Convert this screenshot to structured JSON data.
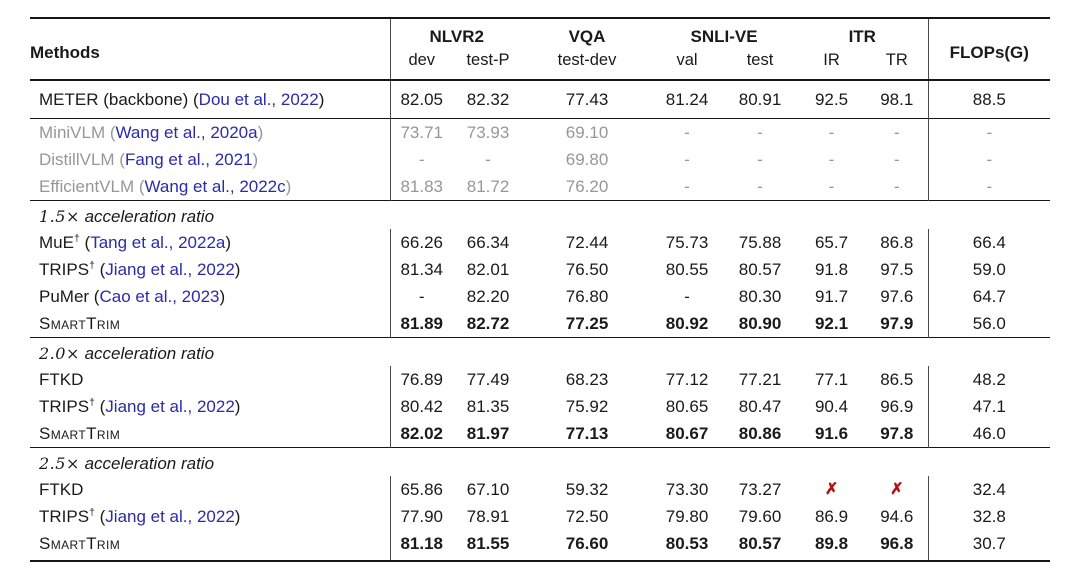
{
  "colors": {
    "citation_blue": "#2b2baa",
    "muted_gray": "#979797",
    "cross_red": "#b51212",
    "rule_black": "#161616",
    "text_black": "#1a1a1a"
  },
  "glyphs": {
    "dagger": "†",
    "cross": "✗",
    "dash": "-"
  },
  "header": {
    "methods_label": "Methods",
    "groups": [
      {
        "label": "NLVR2",
        "subs": [
          "dev",
          "test-P"
        ]
      },
      {
        "label": "VQA",
        "subs": [
          "test-dev"
        ]
      },
      {
        "label": "SNLI-VE",
        "subs": [
          "val",
          "test"
        ]
      },
      {
        "label": "ITR",
        "subs": [
          "IR",
          "TR"
        ]
      },
      {
        "label": "FLOPs(G)",
        "subs": []
      }
    ]
  },
  "sections": [
    {
      "header": null,
      "tall": true,
      "rows": [
        {
          "name": "METER (backbone)",
          "citation": "Dou et al., 2022",
          "dagger": false,
          "muted": false,
          "smallcaps": false,
          "values": [
            "82.05",
            "82.32",
            "77.43",
            "81.24",
            "80.91",
            "92.5",
            "98.1",
            "88.5"
          ],
          "bold_mask": [
            0,
            0,
            0,
            0,
            0,
            0,
            0,
            0
          ]
        }
      ]
    },
    {
      "header": null,
      "tall": false,
      "rows": [
        {
          "name": "MiniVLM",
          "citation": "Wang et al., 2020a",
          "dagger": false,
          "muted": true,
          "smallcaps": false,
          "values": [
            "73.71",
            "73.93",
            "69.10",
            "-",
            "-",
            "-",
            "-",
            "-"
          ],
          "bold_mask": [
            0,
            0,
            0,
            0,
            0,
            0,
            0,
            0
          ]
        },
        {
          "name": "DistillVLM",
          "citation": "Fang et al., 2021",
          "dagger": false,
          "muted": true,
          "smallcaps": false,
          "values": [
            "-",
            "-",
            "69.80",
            "-",
            "-",
            "-",
            "-",
            "-"
          ],
          "bold_mask": [
            0,
            0,
            0,
            0,
            0,
            0,
            0,
            0
          ]
        },
        {
          "name": "EfficientVLM",
          "citation": "Wang et al., 2022c",
          "dagger": false,
          "muted": true,
          "smallcaps": false,
          "values": [
            "81.83",
            "81.72",
            "76.20",
            "-",
            "-",
            "-",
            "-",
            "-"
          ],
          "bold_mask": [
            0,
            0,
            0,
            0,
            0,
            0,
            0,
            0
          ]
        }
      ]
    },
    {
      "header": {
        "math": "1.5×",
        "text": "acceleration ratio"
      },
      "tall": false,
      "rows": [
        {
          "name": "MuE",
          "citation": "Tang et al., 2022a",
          "dagger": true,
          "muted": false,
          "smallcaps": false,
          "values": [
            "66.26",
            "66.34",
            "72.44",
            "75.73",
            "75.88",
            "65.7",
            "86.8",
            "66.4"
          ],
          "bold_mask": [
            0,
            0,
            0,
            0,
            0,
            0,
            0,
            0
          ]
        },
        {
          "name": "TRIPS",
          "citation": "Jiang et al., 2022",
          "dagger": true,
          "muted": false,
          "smallcaps": false,
          "values": [
            "81.34",
            "82.01",
            "76.50",
            "80.55",
            "80.57",
            "91.8",
            "97.5",
            "59.0"
          ],
          "bold_mask": [
            0,
            0,
            0,
            0,
            0,
            0,
            0,
            0
          ]
        },
        {
          "name": "PuMer",
          "citation": "Cao et al., 2023",
          "dagger": false,
          "muted": false,
          "smallcaps": false,
          "values": [
            "-",
            "82.20",
            "76.80",
            "-",
            "80.30",
            "91.7",
            "97.6",
            "64.7"
          ],
          "bold_mask": [
            0,
            0,
            0,
            0,
            0,
            0,
            0,
            0
          ]
        },
        {
          "name": "SmartTrim",
          "citation": null,
          "dagger": false,
          "muted": false,
          "smallcaps": true,
          "values": [
            "81.89",
            "82.72",
            "77.25",
            "80.92",
            "80.90",
            "92.1",
            "97.9",
            "56.0"
          ],
          "bold_mask": [
            1,
            1,
            1,
            1,
            1,
            1,
            1,
            0
          ]
        }
      ]
    },
    {
      "header": {
        "math": "2.0×",
        "text": "acceleration ratio"
      },
      "tall": false,
      "rows": [
        {
          "name": "FTKD",
          "citation": null,
          "dagger": false,
          "muted": false,
          "smallcaps": false,
          "values": [
            "76.89",
            "77.49",
            "68.23",
            "77.12",
            "77.21",
            "77.1",
            "86.5",
            "48.2"
          ],
          "bold_mask": [
            0,
            0,
            0,
            0,
            0,
            0,
            0,
            0
          ]
        },
        {
          "name": "TRIPS",
          "citation": "Jiang et al., 2022",
          "dagger": true,
          "muted": false,
          "smallcaps": false,
          "values": [
            "80.42",
            "81.35",
            "75.92",
            "80.65",
            "80.47",
            "90.4",
            "96.9",
            "47.1"
          ],
          "bold_mask": [
            0,
            0,
            0,
            0,
            0,
            0,
            0,
            0
          ]
        },
        {
          "name": "SmartTrim",
          "citation": null,
          "dagger": false,
          "muted": false,
          "smallcaps": true,
          "values": [
            "82.02",
            "81.97",
            "77.13",
            "80.67",
            "80.86",
            "91.6",
            "97.8",
            "46.0"
          ],
          "bold_mask": [
            1,
            1,
            1,
            1,
            1,
            1,
            1,
            0
          ]
        }
      ]
    },
    {
      "header": {
        "math": "2.5×",
        "text": "acceleration ratio"
      },
      "tall": false,
      "rows": [
        {
          "name": "FTKD",
          "citation": null,
          "dagger": false,
          "muted": false,
          "smallcaps": false,
          "values": [
            "65.86",
            "67.10",
            "59.32",
            "73.30",
            "73.27",
            "✗",
            "✗",
            "32.4"
          ],
          "bold_mask": [
            0,
            0,
            0,
            0,
            0,
            0,
            0,
            0
          ]
        },
        {
          "name": "TRIPS",
          "citation": "Jiang et al., 2022",
          "dagger": true,
          "muted": false,
          "smallcaps": false,
          "values": [
            "77.90",
            "78.91",
            "72.50",
            "79.80",
            "79.60",
            "86.9",
            "94.6",
            "32.8"
          ],
          "bold_mask": [
            0,
            0,
            0,
            0,
            0,
            0,
            0,
            0
          ]
        },
        {
          "name": "SmartTrim",
          "citation": null,
          "dagger": false,
          "muted": false,
          "smallcaps": true,
          "values": [
            "81.18",
            "81.55",
            "76.60",
            "80.53",
            "80.57",
            "89.8",
            "96.8",
            "30.7"
          ],
          "bold_mask": [
            1,
            1,
            1,
            1,
            1,
            1,
            1,
            0
          ]
        }
      ]
    }
  ]
}
